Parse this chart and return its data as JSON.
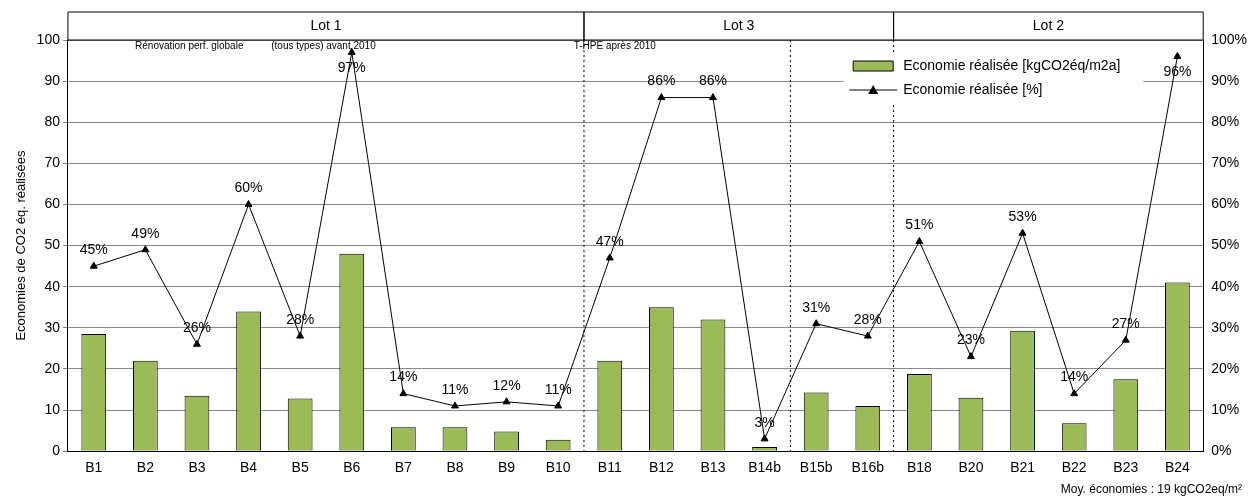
{
  "chart_data": {
    "type": "bar",
    "ylabel": "Economies de CO2 éq. réalisées",
    "categories": [
      "B1",
      "B2",
      "B3",
      "B4",
      "B5",
      "B6",
      "B7",
      "B8",
      "B9",
      "B10",
      "B11",
      "B12",
      "B13",
      "B14b",
      "B15b",
      "B16b",
      "B18",
      "B20",
      "B21",
      "B22",
      "B23",
      "B24"
    ],
    "series": [
      {
        "name": "Economie réalisée [kgCO2éq/m2a]",
        "color": "#9bbb59",
        "values": [
          28.5,
          22,
          13.5,
          34,
          12.8,
          48,
          5.8,
          5.8,
          4.8,
          2.8,
          22,
          35,
          32,
          1,
          14.3,
          11,
          18.8,
          13,
          29.3,
          6.8,
          17.5,
          41
        ]
      },
      {
        "name": "Economie réalisée [%]",
        "type": "line",
        "axis": "y2",
        "color": "#000000",
        "marker": "triangle",
        "values": [
          45,
          49,
          26,
          60,
          28,
          97,
          14,
          11,
          12,
          11,
          47,
          86,
          86,
          3,
          31,
          28,
          51,
          23,
          53,
          14,
          27,
          96
        ],
        "value_labels": [
          "45%",
          "49%",
          "26%",
          "60%",
          "28%",
          "97%",
          "14%",
          "11%",
          "12%",
          "11%",
          "47%",
          "86%",
          "86%",
          "3%",
          "31%",
          "28%",
          "51%",
          "23%",
          "53%",
          "14%",
          "27%",
          "96%"
        ]
      }
    ],
    "ylim": [
      0,
      100
    ],
    "yticks": [
      0,
      10,
      20,
      30,
      40,
      50,
      60,
      70,
      80,
      90,
      100
    ],
    "y2lim": [
      0,
      100
    ],
    "y2ticks": [
      {
        "value": 0,
        "label": "0%"
      },
      {
        "value": 10,
        "label": "10%"
      },
      {
        "value": 20,
        "label": "20%"
      },
      {
        "value": 30,
        "label": "30%"
      },
      {
        "value": 40,
        "label": "40%"
      },
      {
        "value": 50,
        "label": "50%"
      },
      {
        "value": 60,
        "label": "60%"
      },
      {
        "value": 70,
        "label": "70%"
      },
      {
        "value": 80,
        "label": "80%"
      },
      {
        "value": 90,
        "label": "90%"
      },
      {
        "value": 100,
        "label": "100%"
      }
    ],
    "grid": "y",
    "legend": "top right",
    "annotations": [
      "Lot 1",
      "Lot 3",
      "Lot 2",
      "Rénovation perf. globale          (tous types) avant 2010",
      "T-HPE après 2010",
      "Moy. économies : 19 kgCO2eq/m²"
    ]
  }
}
